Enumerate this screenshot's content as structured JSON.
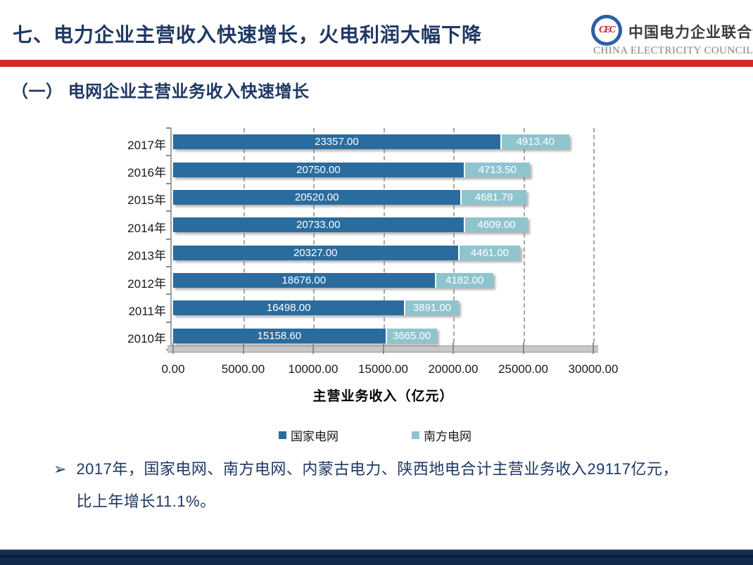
{
  "header": {
    "title": "七、电力企业主营收入快速增长，火电利润大幅下降",
    "logo": {
      "emblem_text": "CEC",
      "org_name_cn": "中国电力企业联合会",
      "org_name_en": "CHINA ELECTRICITY COUNCIL"
    }
  },
  "section": {
    "heading": "（一）  电网企业主营业务收入快速增长"
  },
  "chart_data": {
    "type": "bar",
    "orientation": "horizontal",
    "stacked": true,
    "title": "",
    "xlabel": "主营业务收入（亿元）",
    "ylabel": "",
    "xlim": [
      0,
      30000
    ],
    "xtick_values": [
      0,
      5000,
      10000,
      15000,
      20000,
      25000,
      30000
    ],
    "xtick_labels": [
      "0.00",
      "5000.00",
      "10000.00",
      "15000.00",
      "20000.00",
      "25000.00",
      "30000.00"
    ],
    "grid": "vertical-dashed",
    "legend_position": "bottom",
    "categories": [
      "2017年",
      "2016年",
      "2015年",
      "2014年",
      "2013年",
      "2012年",
      "2011年",
      "2010年"
    ],
    "series": [
      {
        "name": "国家电网",
        "color": "#2A6C9E",
        "values": [
          23357.0,
          20750.0,
          20520.0,
          20733.0,
          20327.0,
          18676.0,
          16498.0,
          15158.6
        ]
      },
      {
        "name": "南方电网",
        "color": "#8FC4CE",
        "values": [
          4913.4,
          4713.5,
          4681.79,
          4609.0,
          4461.0,
          4182.0,
          3891.0,
          3665.0
        ]
      }
    ],
    "value_label_format": "0.00"
  },
  "bullet": {
    "marker": "➢",
    "lines": [
      "2017年，国家电网、南方电网、内蒙古电力、陕西地电合计主营业务收入29117亿元，",
      "比上年增长11.1%。"
    ]
  },
  "colors": {
    "title_navy": "#1F3864",
    "divider_red": "#D32B2A",
    "footer_navy": "#132A4D",
    "bar_primary": "#2A6C9E",
    "bar_secondary": "#8FC4CE"
  }
}
